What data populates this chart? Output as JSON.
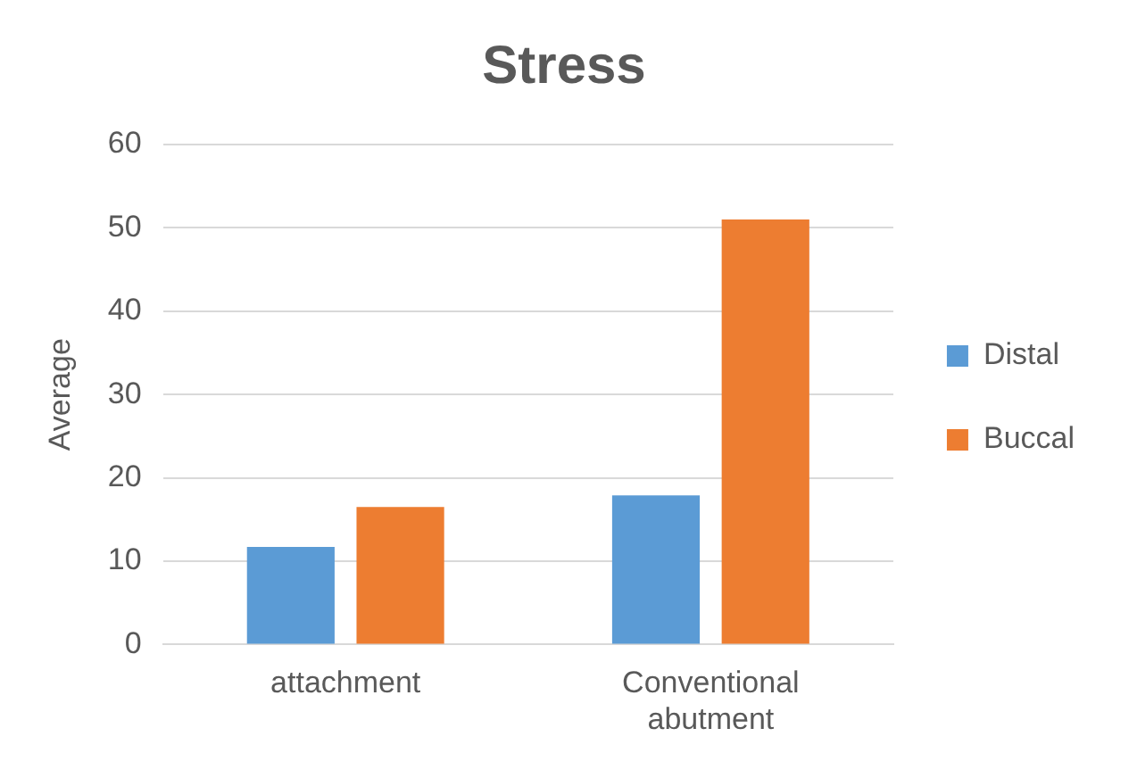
{
  "chart_data": {
    "type": "bar",
    "title": "Stress",
    "ylabel": "Average",
    "categories": [
      [
        "attachment"
      ],
      [
        "Conventional",
        "abutment"
      ]
    ],
    "series": [
      {
        "name": "Distal",
        "color": "#5b9bd5",
        "values": [
          11.7,
          17.9
        ]
      },
      {
        "name": "Buccal",
        "color": "#ed7d31",
        "values": [
          16.5,
          51
        ]
      }
    ],
    "ylim": [
      0,
      60
    ],
    "yticks": [
      0,
      10,
      20,
      30,
      40,
      50,
      60
    ],
    "grid": "y",
    "legend": "right"
  }
}
